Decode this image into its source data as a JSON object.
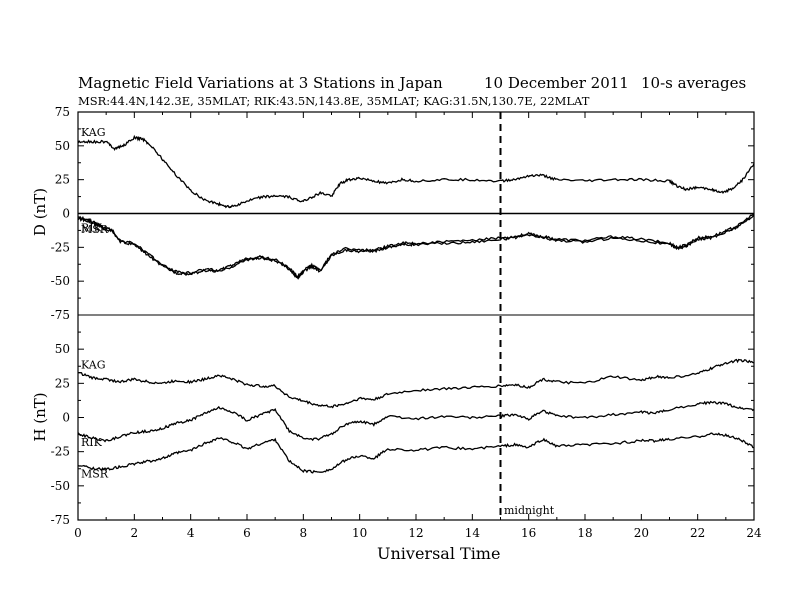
{
  "chart_data": {
    "type": "line",
    "title": "Magnetic Field Variations at 3 Stations in Japan",
    "date": "10 December 2011",
    "averaging": "10-s averages",
    "subtitle": "MSR:44.4N,142.3E, 35MLAT;  RIK:43.5N,143.8E, 35MLAT;  KAG:31.5N,130.7E, 22MLAT",
    "xlabel": "Universal Time",
    "xlim": [
      0,
      24
    ],
    "xticks": [
      "0",
      "2",
      "4",
      "6",
      "8",
      "10",
      "12",
      "14",
      "16",
      "18",
      "20",
      "22",
      "24"
    ],
    "marker": {
      "x": 15,
      "label": "midnight"
    },
    "panels": [
      {
        "ylabel": "D (nT)",
        "ylim": [
          -75,
          75
        ],
        "yticks": [
          "75",
          "50",
          "25",
          "0",
          "-25",
          "-50",
          "-75"
        ],
        "zero_line": true,
        "series": [
          {
            "name": "KAG",
            "x": [
              0,
              0.5,
              1,
              1.3,
              1.6,
              2,
              2.3,
              2.6,
              3,
              3.5,
              4,
              4.5,
              5,
              5.3,
              5.6,
              6,
              6.5,
              7,
              7.5,
              7.9,
              8.3,
              8.6,
              9,
              9.3,
              9.6,
              10,
              10.5,
              11,
              11.5,
              12,
              13,
              14,
              15,
              15.5,
              16,
              16.5,
              17,
              18,
              19,
              20,
              21,
              21.3,
              21.6,
              22,
              22.5,
              22.8,
              23.2,
              23.6,
              24
            ],
            "y": [
              53,
              53,
              53,
              48,
              50,
              56,
              55,
              50,
              40,
              28,
              17,
              10,
              7,
              5,
              6,
              9,
              12,
              13,
              12,
              9,
              12,
              15,
              13,
              22,
              25,
              26,
              24,
              22,
              25,
              24,
              25,
              25,
              24,
              25,
              28,
              28,
              25,
              24,
              25,
              25,
              24,
              20,
              18,
              19,
              18,
              15,
              18,
              25,
              37
            ]
          },
          {
            "name": "RIK",
            "x": [
              0,
              0.3,
              0.6,
              0.9,
              1.2,
              1.5,
              2,
              2.5,
              3,
              3.5,
              4,
              4.5,
              5,
              5.5,
              6,
              6.5,
              7,
              7.5,
              7.8,
              8,
              8.3,
              8.6,
              9,
              9.5,
              10,
              10.5,
              11,
              11.5,
              12,
              13,
              14,
              15,
              15.5,
              16,
              16.5,
              17,
              18,
              19,
              20,
              21,
              21.3,
              21.6,
              22,
              22.5,
              23,
              23.5,
              24
            ],
            "y": [
              -3,
              -4,
              -7,
              -10,
              -12,
              -20,
              -22,
              -30,
              -38,
              -43,
              -44,
              -41,
              -42,
              -38,
              -33,
              -32,
              -34,
              -40,
              -47,
              -42,
              -38,
              -42,
              -30,
              -26,
              -27,
              -27,
              -24,
              -22,
              -22,
              -21,
              -20,
              -18,
              -17,
              -15,
              -17,
              -19,
              -20,
              -17,
              -19,
              -22,
              -25,
              -23,
              -18,
              -17,
              -13,
              -8,
              0
            ]
          },
          {
            "name": "MSR",
            "x": [
              0,
              0.3,
              0.6,
              0.9,
              1.2,
              1.5,
              2,
              2.5,
              3,
              3.5,
              4,
              4.5,
              5,
              5.5,
              6,
              6.5,
              7,
              7.5,
              7.8,
              8,
              8.3,
              8.6,
              9,
              9.5,
              10,
              10.5,
              11,
              11.5,
              12,
              13,
              14,
              15,
              15.5,
              16,
              16.5,
              17,
              18,
              19,
              20,
              21,
              21.3,
              21.6,
              22,
              22.5,
              23,
              23.5,
              24
            ],
            "y": [
              -4,
              -5,
              -8,
              -11,
              -13,
              -21,
              -23,
              -31,
              -39,
              -44,
              -45,
              -42,
              -43,
              -39,
              -34,
              -33,
              -35,
              -41,
              -48,
              -43,
              -39,
              -43,
              -31,
              -27,
              -28,
              -28,
              -25,
              -23,
              -23,
              -22,
              -21,
              -19,
              -18,
              -16,
              -18,
              -20,
              -21,
              -18,
              -20,
              -23,
              -26,
              -24,
              -19,
              -18,
              -14,
              -9,
              -1
            ]
          }
        ]
      },
      {
        "ylabel": "H (nT)",
        "ylim": [
          -75,
          75
        ],
        "yticks": [
          "50",
          "25",
          "0",
          "-25",
          "-50",
          "-75"
        ],
        "zero_line": false,
        "series": [
          {
            "name": "KAG",
            "x": [
              0,
              0.5,
              1,
              1.5,
              2,
              2.5,
              3,
              3.5,
              4,
              4.5,
              5,
              5.5,
              6,
              6.5,
              7,
              7.5,
              8,
              8.5,
              9,
              9.5,
              10,
              10.5,
              11,
              12,
              13,
              14,
              15,
              15.5,
              16,
              16.5,
              17,
              18,
              19,
              20,
              20.5,
              21,
              22,
              22.5,
              23,
              23.5,
              24
            ],
            "y": [
              33,
              29,
              28,
              26,
              28,
              26,
              25,
              27,
              26,
              28,
              31,
              28,
              24,
              23,
              23,
              15,
              12,
              9,
              8,
              10,
              14,
              13,
              17,
              20,
              21,
              22,
              23,
              24,
              22,
              28,
              26,
              25,
              30,
              27,
              30,
              29,
              32,
              36,
              40,
              42,
              40
            ]
          },
          {
            "name": "RIK",
            "x": [
              0,
              0.5,
              1,
              1.5,
              2,
              2.5,
              3,
              3.5,
              4,
              4.5,
              5,
              5.5,
              6,
              6.5,
              7,
              7.5,
              8,
              8.5,
              9,
              9.5,
              10,
              10.5,
              11,
              12,
              13,
              14,
              15,
              15.5,
              16,
              16.5,
              17,
              18,
              19,
              20,
              20.5,
              21,
              22,
              22.5,
              23,
              23.5,
              24
            ],
            "y": [
              -12,
              -15,
              -17,
              -14,
              -11,
              -10,
              -8,
              -4,
              -2,
              3,
              7,
              4,
              -2,
              2,
              6,
              -10,
              -15,
              -16,
              -12,
              -5,
              -3,
              -5,
              1,
              -1,
              1,
              0,
              1,
              2,
              -1,
              5,
              1,
              0,
              2,
              4,
              3,
              6,
              10,
              11,
              10,
              7,
              6
            ]
          },
          {
            "name": "MSR",
            "x": [
              0,
              0.5,
              1,
              1.5,
              2,
              2.5,
              3,
              3.5,
              4,
              4.5,
              5,
              5.5,
              6,
              6.5,
              7,
              7.5,
              8,
              8.5,
              9,
              9.5,
              10,
              10.5,
              11,
              12,
              13,
              14,
              15,
              15.5,
              16,
              16.5,
              17,
              18,
              19,
              20,
              20.5,
              21,
              22,
              22.5,
              23,
              23.5,
              24
            ],
            "y": [
              -35,
              -37,
              -38,
              -36,
              -34,
              -32,
              -30,
              -26,
              -24,
              -19,
              -15,
              -18,
              -23,
              -19,
              -16,
              -32,
              -39,
              -40,
              -38,
              -31,
              -28,
              -30,
              -23,
              -24,
              -22,
              -23,
              -21,
              -20,
              -22,
              -16,
              -21,
              -20,
              -19,
              -17,
              -17,
              -16,
              -14,
              -12,
              -13,
              -16,
              -22
            ]
          }
        ]
      }
    ]
  }
}
